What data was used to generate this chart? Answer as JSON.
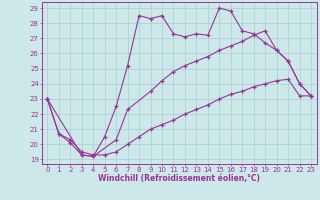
{
  "xlabel": "Windchill (Refroidissement éolien,°C)",
  "bg_color": "#cce8e8",
  "grid_color": "#aacfcf",
  "line_color": "#993399",
  "xlim": [
    -0.5,
    23.5
  ],
  "ylim": [
    18.7,
    29.4
  ],
  "xticks": [
    0,
    1,
    2,
    3,
    4,
    5,
    6,
    7,
    8,
    9,
    10,
    11,
    12,
    13,
    14,
    15,
    16,
    17,
    18,
    19,
    20,
    21,
    22,
    23
  ],
  "yticks": [
    19,
    20,
    21,
    22,
    23,
    24,
    25,
    26,
    27,
    28,
    29
  ],
  "line1_x": [
    0,
    1,
    2,
    3,
    4,
    5,
    6,
    7,
    8,
    9,
    10,
    11,
    12,
    13,
    14,
    15,
    16,
    17,
    18,
    19,
    20,
    21,
    22,
    23
  ],
  "line1_y": [
    23,
    20.7,
    20.1,
    19.3,
    19.2,
    20.5,
    22.5,
    25.2,
    28.5,
    28.3,
    28.5,
    27.3,
    27.1,
    27.3,
    27.2,
    29.0,
    28.8,
    27.5,
    27.3,
    26.7,
    26.2,
    25.5,
    24.0,
    23.2
  ],
  "line2_x": [
    0,
    3,
    4,
    6,
    7,
    9,
    10,
    11,
    12,
    13,
    14,
    15,
    16,
    17,
    18,
    19,
    20,
    21,
    22,
    23
  ],
  "line2_y": [
    23,
    19.3,
    19.2,
    20.3,
    22.3,
    23.5,
    24.2,
    24.8,
    25.2,
    25.5,
    25.8,
    26.2,
    26.5,
    26.8,
    27.2,
    27.5,
    26.2,
    25.5,
    24.0,
    23.2
  ],
  "line3_x": [
    0,
    1,
    2,
    3,
    4,
    5,
    6,
    7,
    8,
    9,
    10,
    11,
    12,
    13,
    14,
    15,
    16,
    17,
    18,
    19,
    20,
    21,
    22,
    23
  ],
  "line3_y": [
    23,
    20.7,
    20.3,
    19.5,
    19.3,
    19.3,
    19.5,
    20.0,
    20.5,
    21.0,
    21.3,
    21.6,
    22.0,
    22.3,
    22.6,
    23.0,
    23.3,
    23.5,
    23.8,
    24.0,
    24.2,
    24.3,
    23.2,
    23.2
  ]
}
